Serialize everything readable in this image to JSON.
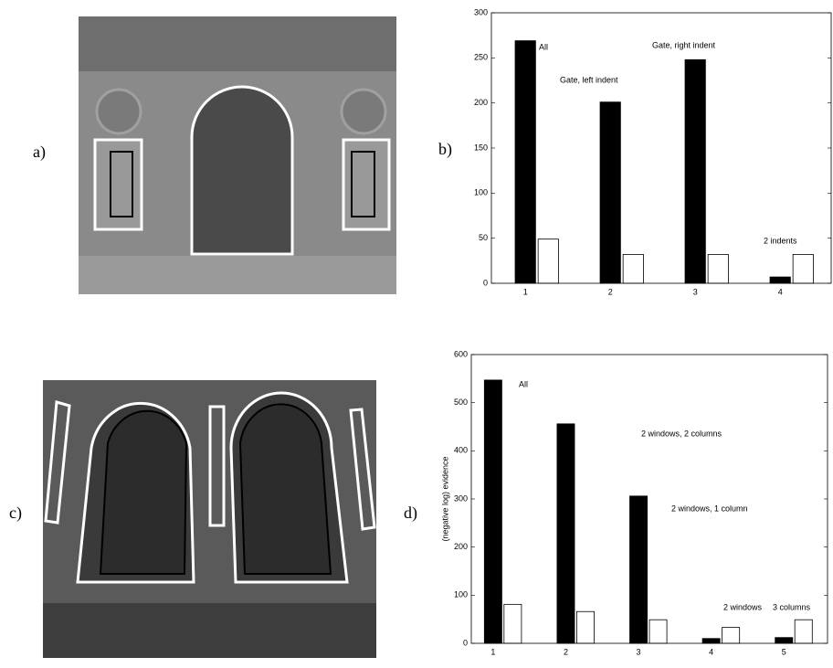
{
  "panels": [
    "a)",
    "b)",
    "c)",
    "d)"
  ],
  "chart_data": [
    {
      "type": "bar",
      "x": [
        1,
        2,
        3,
        4
      ],
      "xlim": [
        0.6,
        4.6
      ],
      "xticks": [
        1,
        2,
        3,
        4
      ],
      "ylim": [
        0,
        300
      ],
      "yticks": [
        0,
        50,
        100,
        150,
        200,
        250,
        300
      ],
      "series": [
        {
          "color": "#000000",
          "values": [
            269,
            201,
            248,
            7
          ]
        },
        {
          "color": "#ffffff",
          "values": [
            49,
            32,
            32,
            32
          ]
        }
      ],
      "annotations": [
        "All",
        "Gate, left indent",
        "Gate, right indent",
        "2 indents"
      ]
    },
    {
      "type": "bar",
      "ylabel": "(negative log) evidence",
      "x": [
        1,
        2,
        3,
        4,
        5
      ],
      "xlim": [
        0.7,
        5.6
      ],
      "xticks": [
        1,
        2,
        3,
        4,
        5
      ],
      "ylim": [
        0,
        600
      ],
      "yticks": [
        0,
        100,
        200,
        300,
        400,
        500,
        600
      ],
      "series": [
        {
          "color": "#000000",
          "values": [
            547,
            456,
            306,
            10,
            12
          ]
        },
        {
          "color": "#ffffff",
          "values": [
            81,
            66,
            49,
            33,
            49
          ]
        }
      ],
      "annotations": [
        "All",
        "2 windows, 2 columns",
        "2 windows, 1 column",
        "2 windows",
        "3 columns"
      ]
    }
  ]
}
